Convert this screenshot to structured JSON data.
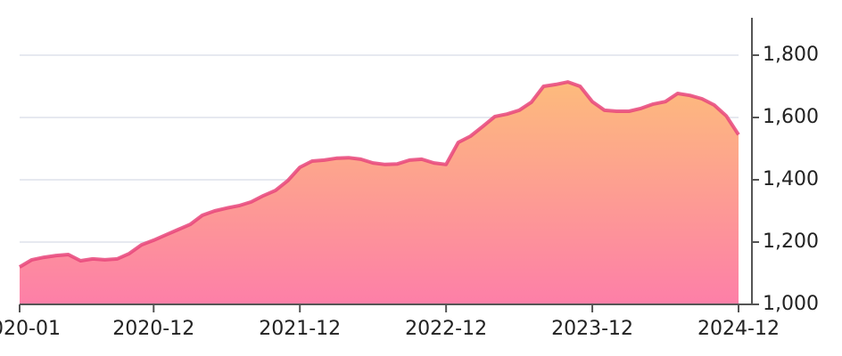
{
  "chart_data": {
    "type": "area",
    "x": [
      "2020-01",
      "2020-02",
      "2020-03",
      "2020-04",
      "2020-05",
      "2020-06",
      "2020-07",
      "2020-08",
      "2020-09",
      "2020-10",
      "2020-11",
      "2020-12",
      "2021-01",
      "2021-02",
      "2021-03",
      "2021-04",
      "2021-05",
      "2021-06",
      "2021-07",
      "2021-08",
      "2021-09",
      "2021-10",
      "2021-11",
      "2021-12",
      "2022-01",
      "2022-02",
      "2022-03",
      "2022-04",
      "2022-05",
      "2022-06",
      "2022-07",
      "2022-08",
      "2022-09",
      "2022-10",
      "2022-11",
      "2022-12",
      "2023-01",
      "2023-02",
      "2023-03",
      "2023-04",
      "2023-05",
      "2023-06",
      "2023-07",
      "2023-08",
      "2023-09",
      "2023-10",
      "2023-11",
      "2023-12",
      "2024-01",
      "2024-02",
      "2024-03",
      "2024-04",
      "2024-05",
      "2024-06",
      "2024-07",
      "2024-08",
      "2024-09",
      "2024-10",
      "2024-11",
      "2024-12"
    ],
    "values": [
      1120,
      1143,
      1151,
      1157,
      1160,
      1140,
      1146,
      1143,
      1146,
      1163,
      1191,
      1206,
      1223,
      1240,
      1257,
      1286,
      1300,
      1309,
      1317,
      1329,
      1349,
      1366,
      1397,
      1440,
      1460,
      1463,
      1469,
      1471,
      1466,
      1454,
      1449,
      1451,
      1463,
      1466,
      1454,
      1449,
      1520,
      1540,
      1571,
      1603,
      1611,
      1623,
      1649,
      1700,
      1706,
      1714,
      1700,
      1651,
      1623,
      1620,
      1620,
      1629,
      1643,
      1651,
      1677,
      1671,
      1660,
      1640,
      1605,
      1545
    ],
    "color": "#e8457a",
    "fill_top": "#fdbb7c",
    "fill_bottom": "#fd7fa8",
    "xlim": [
      "2020-01",
      "2024-12"
    ],
    "xticks": [
      "2020-01",
      "2020-12",
      "2021-12",
      "2022-12",
      "2023-12",
      "2024-12"
    ],
    "ylim": [
      1000,
      1920
    ],
    "yticks": [
      {
        "value": 1000,
        "label": "1,000"
      },
      {
        "value": 1200,
        "label": "1,200"
      },
      {
        "value": 1400,
        "label": "1,400"
      },
      {
        "value": 1600,
        "label": "1,600"
      },
      {
        "value": 1800,
        "label": "1,800"
      }
    ],
    "grid": true,
    "y_axis_side": "right"
  }
}
